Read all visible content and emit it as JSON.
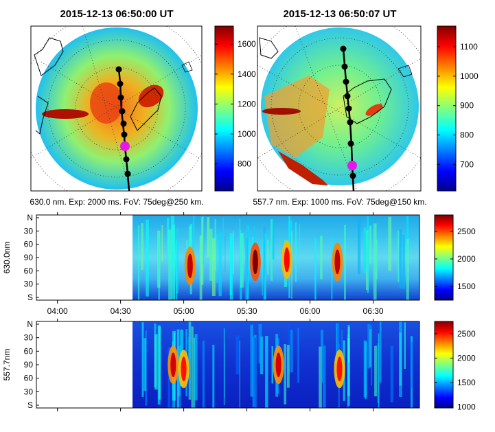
{
  "chart_data": [
    {
      "type": "heatmap",
      "title": "2015-12-13 06:50:00 UT",
      "caption": "630.0 nm. Exp: 2000 ms. FoV: 75deg@250 km.",
      "colorbar": {
        "ticks": [
          800,
          1000,
          1200,
          1400,
          1600
        ],
        "range": [
          620,
          1720
        ]
      }
    },
    {
      "type": "heatmap",
      "title": "2015-12-13 06:50:07 UT",
      "caption": "557.7 nm. Exp: 1000 ms. FoV: 75deg@150 km.",
      "colorbar": {
        "ticks": [
          700,
          800,
          900,
          1000,
          1100
        ],
        "range": [
          610,
          1170
        ]
      }
    },
    {
      "type": "heatmap",
      "ylabel": "630.0nm",
      "y_ticks": [
        "N",
        "30",
        "60",
        "90",
        "60",
        "30",
        "S"
      ],
      "x_ticks": [
        "04:00",
        "04:30",
        "05:00",
        "05:30",
        "06:00",
        "06:30"
      ],
      "data_start": "04:38",
      "xlim": [
        "03:50",
        "06:52"
      ],
      "colorbar": {
        "ticks": [
          1500,
          2000,
          2500
        ],
        "range": [
          1250,
          2800
        ]
      },
      "features": [
        {
          "time": "05:03",
          "y": 90,
          "value": 2700
        },
        {
          "time": "05:34",
          "y": 80,
          "value": 2800
        },
        {
          "time": "05:49",
          "y": 75,
          "value": 2600
        },
        {
          "time": "06:13",
          "y": 80,
          "value": 2700
        }
      ]
    },
    {
      "type": "heatmap",
      "ylabel": "557.7nm",
      "y_ticks": [
        "N",
        "30",
        "60",
        "90",
        "60",
        "30",
        "S"
      ],
      "x_ticks": [
        "04:00",
        "04:30",
        "05:00",
        "05:30",
        "06:00",
        "06:30"
      ],
      "data_start": "04:38",
      "xlim": [
        "03:50",
        "06:52"
      ],
      "colorbar": {
        "ticks": [
          1000,
          1500,
          2000,
          2500
        ],
        "range": [
          980,
          2750
        ]
      },
      "features": [
        {
          "time": "04:55",
          "y": 70,
          "value": 2600
        },
        {
          "time": "05:00",
          "y": 80,
          "value": 2500
        },
        {
          "time": "05:45",
          "y": 70,
          "value": 2600
        },
        {
          "time": "06:14",
          "y": 80,
          "value": 2500
        }
      ]
    }
  ]
}
